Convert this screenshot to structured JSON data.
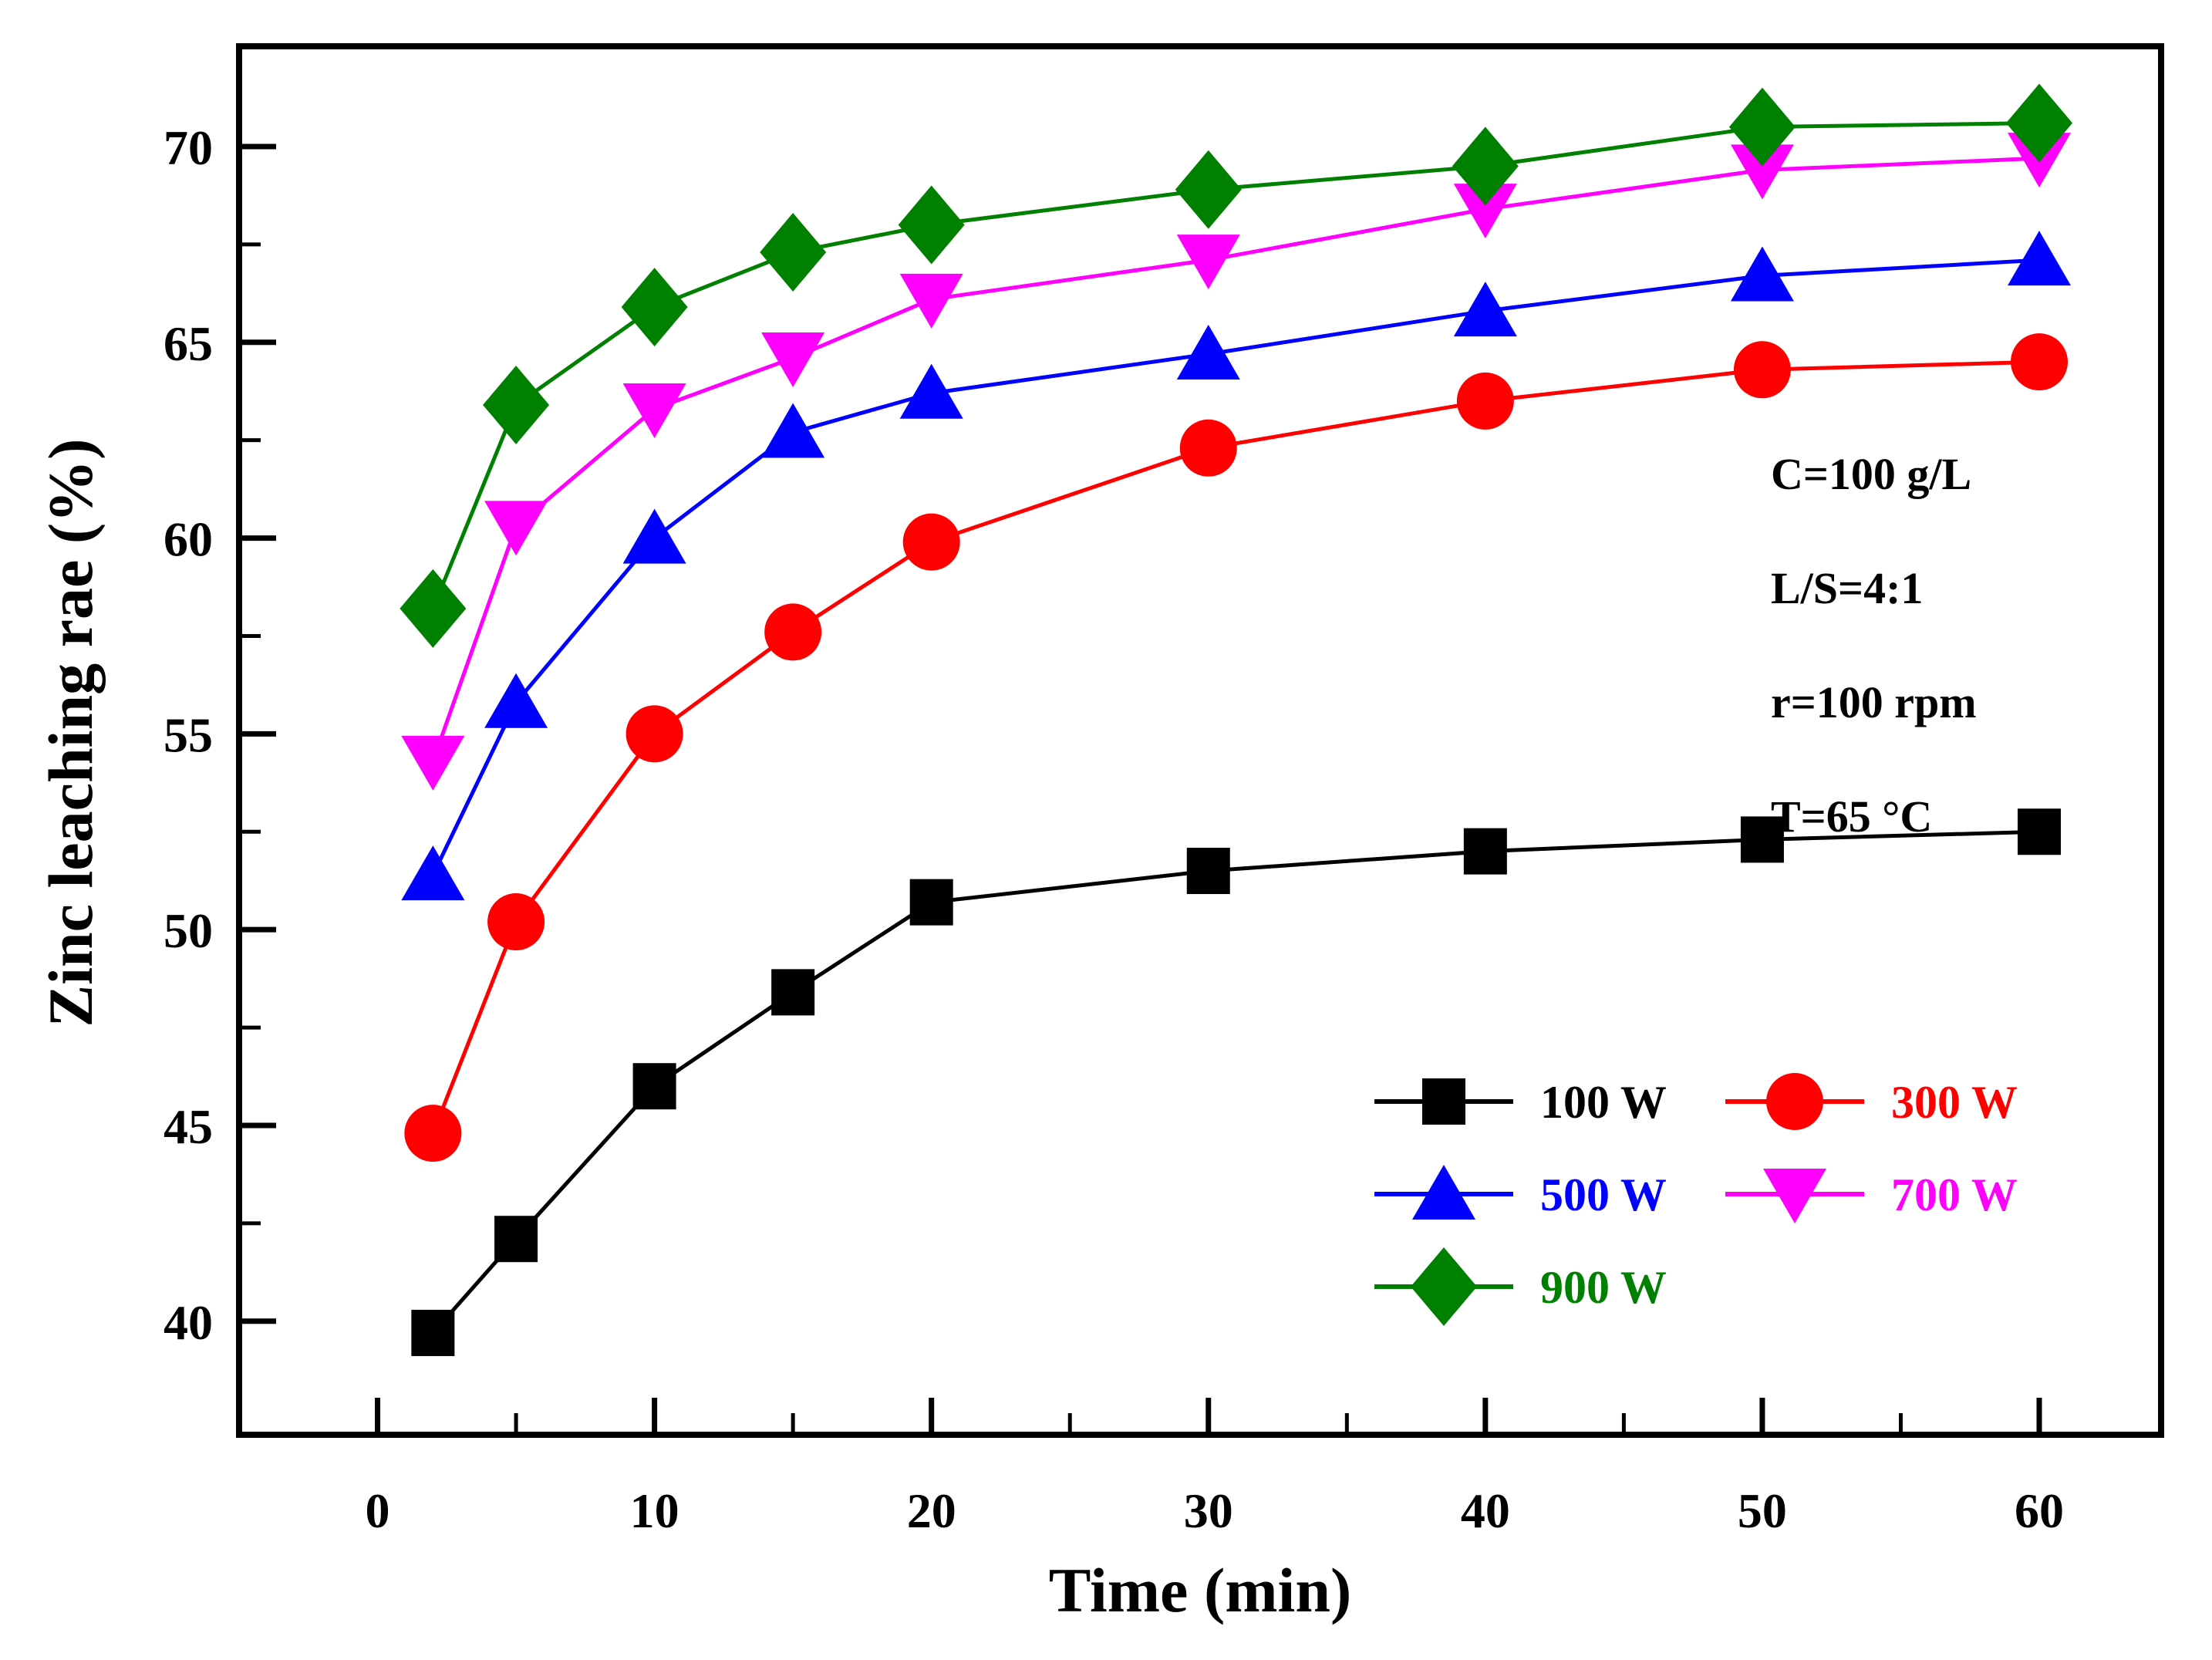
{
  "background": "#ffffff",
  "frame_color": "#000000",
  "chart_data": {
    "type": "line",
    "title": "",
    "xlabel": "Time (min)",
    "ylabel": "Zinc leaching rae (%)",
    "xlim": [
      -5,
      64.4
    ],
    "ylim": [
      37.1,
      72.56
    ],
    "x_major_ticks": [
      0,
      10,
      20,
      30,
      40,
      50,
      60
    ],
    "x_minor_ticks": [
      5,
      15,
      25,
      35,
      45,
      55
    ],
    "y_major_ticks": [
      40,
      45,
      50,
      55,
      60,
      65,
      70
    ],
    "y_minor_ticks": [
      42.5,
      47.5,
      52.5,
      57.5,
      62.5,
      67.5
    ],
    "grid": false,
    "legend_position": "inside lower right, no frame, 2 columns",
    "x": [
      2,
      5,
      10,
      15,
      20,
      30,
      40,
      50,
      60
    ],
    "series": [
      {
        "name": "100 W",
        "color": "#000000",
        "marker": "square",
        "values": [
          39.7,
          42.1,
          46.0,
          48.4,
          50.7,
          51.5,
          52.0,
          52.3,
          52.5
        ]
      },
      {
        "name": "300 W",
        "color": "#ff0000",
        "marker": "circle",
        "values": [
          44.8,
          50.2,
          55.0,
          57.6,
          59.9,
          62.3,
          63.5,
          64.3,
          64.5
        ]
      },
      {
        "name": "500 W",
        "color": "#0000ff",
        "marker": "triangle-up",
        "values": [
          51.4,
          55.8,
          60.0,
          62.7,
          63.7,
          64.7,
          65.8,
          66.7,
          67.1
        ]
      },
      {
        "name": "700 W",
        "color": "#ff00ff",
        "marker": "triangle-down",
        "values": [
          54.3,
          60.3,
          63.3,
          64.6,
          66.1,
          67.1,
          68.4,
          69.4,
          69.7
        ]
      },
      {
        "name": "900 W",
        "color": "#008000",
        "marker": "diamond",
        "values": [
          58.2,
          63.4,
          65.9,
          67.3,
          68.0,
          68.9,
          69.5,
          70.5,
          70.6
        ]
      }
    ],
    "annotations": [
      "C=100 g/L",
      "L/S=4:1",
      "r=100 rpm",
      "T=65 °C"
    ]
  }
}
